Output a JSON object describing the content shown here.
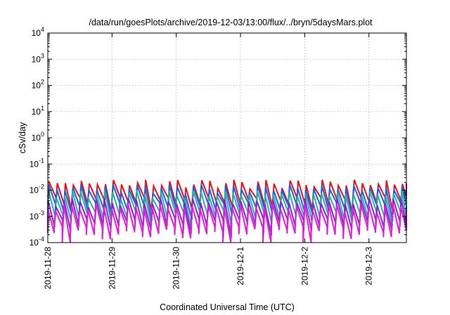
{
  "chart_data": {
    "type": "line",
    "title": "/data/run/goesPlots/archive/2019-12-03/13:00/flux/../bryn/5daysMars.plot",
    "xlabel": "Coordinated Universal Time (UTC)",
    "ylabel": "cSv/day",
    "yscale": "log",
    "ylim": [
      0.0001,
      10000
    ],
    "xlim": [
      "2019-11-28",
      "2019-12-03T14:00"
    ],
    "grid": true,
    "y_ticks": [
      {
        "base": "10",
        "exp": "-4",
        "value": 0.0001
      },
      {
        "base": "10",
        "exp": "-3",
        "value": 0.001
      },
      {
        "base": "10",
        "exp": "-2",
        "value": 0.01
      },
      {
        "base": "10",
        "exp": "-1",
        "value": 0.1
      },
      {
        "base": "10",
        "exp": "0",
        "value": 1
      },
      {
        "base": "10",
        "exp": "1",
        "value": 10
      },
      {
        "base": "10",
        "exp": "2",
        "value": 100
      },
      {
        "base": "10",
        "exp": "3",
        "value": 1000
      },
      {
        "base": "10",
        "exp": "4",
        "value": 10000
      }
    ],
    "x_ticks": [
      "2019-11-28",
      "2019-11-29",
      "2019-11-30",
      "2019-12-1",
      "2019-12-2",
      "2019-12-3"
    ],
    "x_start": "2019-11-28T00:00",
    "x_end": "2019-12-03T14:00",
    "cycle_hours": 3,
    "series": [
      {
        "color": "#e8101a",
        "peak": 0.02,
        "trough": 0.004,
        "phase": 0.0
      },
      {
        "color": "#1f5fe0",
        "peak": 0.013,
        "trough": 0.0025,
        "phase": 0.05
      },
      {
        "color": "#28b0a8",
        "peak": 0.008,
        "trough": 0.0012,
        "phase": 0.1
      },
      {
        "color": "#7a2ad0",
        "peak": 0.004,
        "trough": 0.0006,
        "phase": 0.15
      },
      {
        "color": "#e61ad8",
        "peak": 0.0025,
        "trough": 0.0003,
        "phase": 0.2
      }
    ]
  }
}
